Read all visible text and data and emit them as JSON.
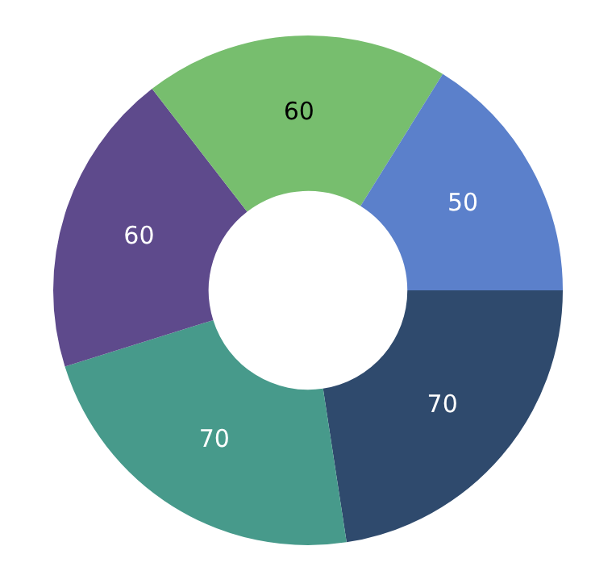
{
  "chart_data": {
    "type": "donut",
    "categories": [
      null,
      null,
      null,
      null,
      null
    ],
    "values": [
      70,
      70,
      60,
      60,
      50
    ],
    "colors": [
      "#2f4a6d",
      "#479a8b",
      "#5e4a8c",
      "#77be6e",
      "#5b80cb"
    ],
    "data_labels": true,
    "legend": false
  }
}
